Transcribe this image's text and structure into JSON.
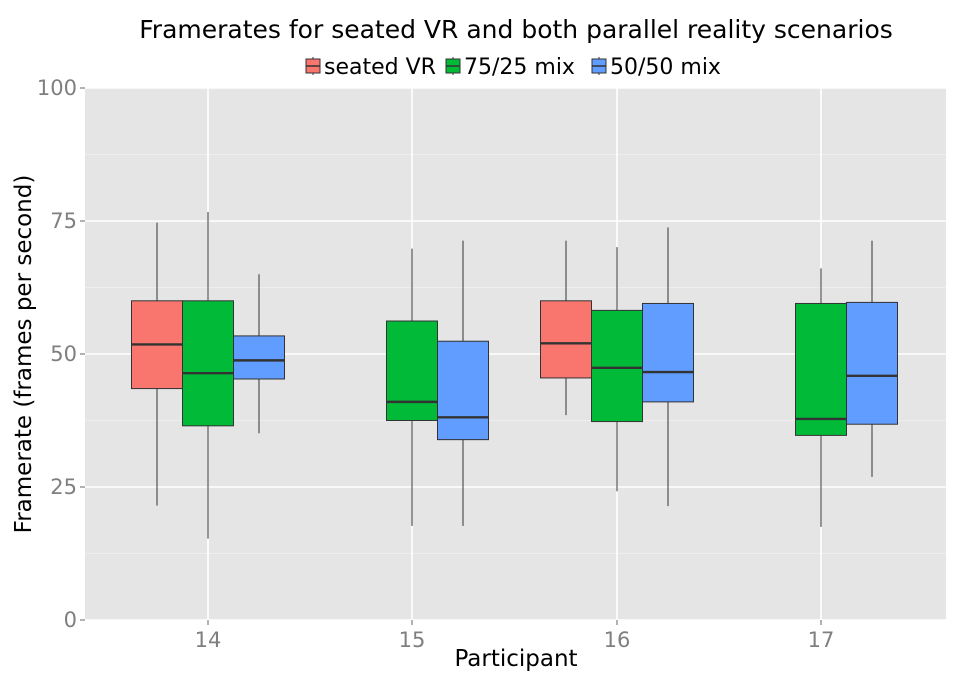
{
  "chart_data": {
    "type": "boxplot",
    "title": "Framerates for seated VR and both parallel reality scenarios",
    "xlabel": "Participant",
    "ylabel": "Framerate (frames per second)",
    "categories": [
      "14",
      "15",
      "16",
      "17"
    ],
    "ylim": [
      0,
      100
    ],
    "yticks": [
      0,
      25,
      50,
      75,
      100
    ],
    "grid": true,
    "legend_position": "top",
    "series": [
      {
        "name": "seated VR",
        "color": "#F8766D",
        "boxes": [
          {
            "category": "14",
            "min": 21.5,
            "q1": 43.5,
            "median": 51.8,
            "q3": 60.0,
            "max": 74.7
          },
          {
            "category": "16",
            "min": 38.5,
            "q1": 45.5,
            "median": 52.0,
            "q3": 60.0,
            "max": 71.3
          }
        ]
      },
      {
        "name": "75/25 mix",
        "color": "#00BA38",
        "boxes": [
          {
            "category": "14",
            "min": 15.3,
            "q1": 36.5,
            "median": 46.4,
            "q3": 60.0,
            "max": 76.7
          },
          {
            "category": "15",
            "min": 17.7,
            "q1": 37.5,
            "median": 41.0,
            "q3": 56.2,
            "max": 69.8
          },
          {
            "category": "16",
            "min": 24.2,
            "q1": 37.3,
            "median": 47.4,
            "q3": 58.2,
            "max": 70.1
          },
          {
            "category": "17",
            "min": 17.5,
            "q1": 34.7,
            "median": 37.8,
            "q3": 59.5,
            "max": 66.1
          }
        ]
      },
      {
        "name": "50/50 mix",
        "color": "#619CFF",
        "boxes": [
          {
            "category": "14",
            "min": 35.1,
            "q1": 45.3,
            "median": 48.8,
            "q3": 53.4,
            "max": 65.0
          },
          {
            "category": "15",
            "min": 17.7,
            "q1": 33.9,
            "median": 38.1,
            "q3": 52.4,
            "max": 71.3
          },
          {
            "category": "16",
            "min": 21.4,
            "q1": 41.0,
            "median": 46.6,
            "q3": 59.5,
            "max": 73.8
          },
          {
            "category": "17",
            "min": 26.9,
            "q1": 36.8,
            "median": 45.9,
            "q3": 59.7,
            "max": 71.3
          }
        ]
      }
    ]
  }
}
